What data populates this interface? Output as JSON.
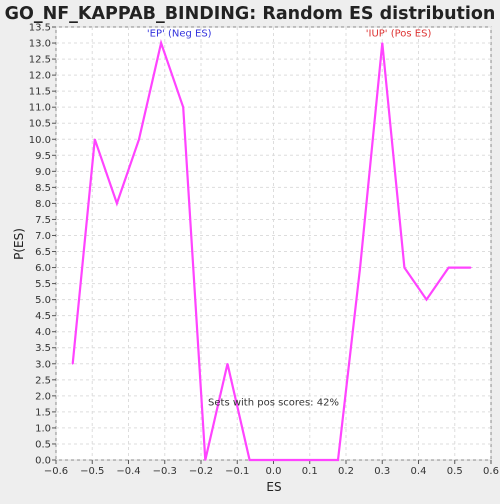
{
  "chart_data": {
    "type": "line",
    "title": "GO_NF_KAPPAB_BINDING: Random ES distribution",
    "xlabel": "ES",
    "ylabel": "P(ES)",
    "xlim": [
      -0.6,
      0.6
    ],
    "ylim": [
      0.0,
      13.5
    ],
    "xticks": [
      "−0.6",
      "−0.5",
      "−0.4",
      "−0.3",
      "−0.2",
      "−0.1",
      "0.0",
      "0.1",
      "0.2",
      "0.3",
      "0.4",
      "0.5",
      "0.6"
    ],
    "xtick_values": [
      -0.6,
      -0.5,
      -0.4,
      -0.3,
      -0.2,
      -0.1,
      0.0,
      0.1,
      0.2,
      0.3,
      0.4,
      0.5,
      0.6
    ],
    "yticks": [
      "0.0",
      "0.5",
      "1.0",
      "1.5",
      "2.0",
      "2.5",
      "3.0",
      "3.5",
      "4.0",
      "4.5",
      "5.0",
      "5.5",
      "6.0",
      "6.5",
      "7.0",
      "7.5",
      "8.0",
      "8.5",
      "9.0",
      "9.5",
      "10.0",
      "10.5",
      "11.0",
      "11.5",
      "12.0",
      "12.5",
      "13.0",
      "13.5"
    ],
    "ytick_values": [
      0.0,
      0.5,
      1.0,
      1.5,
      2.0,
      2.5,
      3.0,
      3.5,
      4.0,
      4.5,
      5.0,
      5.5,
      6.0,
      6.5,
      7.0,
      7.5,
      8.0,
      8.5,
      9.0,
      9.5,
      10.0,
      10.5,
      11.0,
      11.5,
      12.0,
      12.5,
      13.0,
      13.5
    ],
    "grid": true,
    "series": [
      {
        "color": "#ff44ff",
        "x": [
          -0.554,
          -0.493,
          -0.432,
          -0.371,
          -0.31,
          -0.249,
          -0.188,
          -0.127,
          -0.066,
          -0.005,
          0.056,
          0.117,
          0.178,
          0.239,
          0.3,
          0.361,
          0.422,
          0.483,
          0.544
        ],
        "y": [
          3.0,
          10.0,
          8.0,
          10.0,
          13.0,
          11.0,
          0.0,
          3.0,
          0.0,
          0.0,
          0.0,
          0.0,
          0.0,
          6.0,
          13.0,
          6.0,
          5.0,
          6.0,
          6.0
        ]
      }
    ],
    "annotations": [
      {
        "text": "'EP' (Neg ES)",
        "x": -0.26,
        "y": 13.3,
        "color": "#3333dd"
      },
      {
        "text": "'IUP' (Pos ES)",
        "x": 0.345,
        "y": 13.3,
        "color": "#dd3333"
      },
      {
        "text": "Sets with pos scores: 42%",
        "x": 0.0,
        "y": 1.8,
        "color": "#333333"
      }
    ]
  }
}
